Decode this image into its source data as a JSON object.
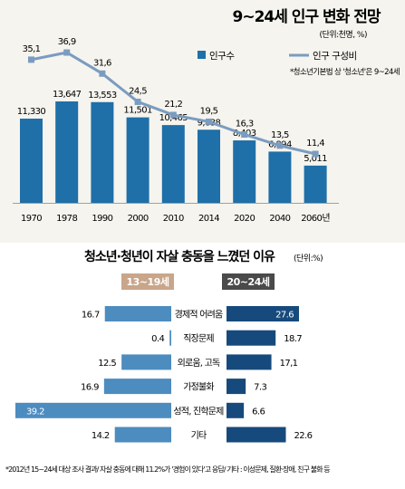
{
  "chart_data": [
    {
      "type": "bar",
      "title": "9~24세 인구 변화 전망",
      "unit": "(단위:천명, %)",
      "note": "*청소년기본법 상 '청소년'은 9~24세",
      "categories": [
        "1970",
        "1978",
        "1990",
        "2000",
        "2010",
        "2014",
        "2020",
        "2040",
        "2060년"
      ],
      "series": [
        {
          "name": "인구수",
          "type": "bar",
          "values": [
            11330,
            13647,
            13553,
            11501,
            10465,
            9838,
            8403,
            6894,
            5011
          ],
          "labels": [
            "11,330",
            "13,647",
            "13,553",
            "11,501",
            "10,465",
            "9,838",
            "8,403",
            "6,894",
            "5,011"
          ]
        },
        {
          "name": "인구 구성비",
          "type": "line",
          "values": [
            35.1,
            36.9,
            31.6,
            24.5,
            21.2,
            19.5,
            16.3,
            13.5,
            11.4
          ],
          "labels": [
            "35,1",
            "36,9",
            "31,6",
            "24,5",
            "21,2",
            "19,5",
            "16,3",
            "13,5",
            "11,4"
          ]
        }
      ],
      "colors": {
        "bar": "#1f6fa8",
        "line": "#7a9cc0",
        "background": "#f5f4ee"
      }
    },
    {
      "type": "bar",
      "title": "청소년·청년이 자살 충동을 느꼈던 이유",
      "unit": "(단위:%)",
      "categories": [
        "경제적 어려움",
        "직장문제",
        "외로움, 고독",
        "가정불화",
        "성적, 진학문제",
        "기타"
      ],
      "series": [
        {
          "name": "13~19세",
          "values": [
            16.7,
            0.4,
            12.5,
            16.9,
            39.2,
            14.2
          ],
          "labels": [
            "16.7",
            "0.4",
            "12.5",
            "16.9",
            "39.2",
            "14.2"
          ],
          "color": "#4d8cbf"
        },
        {
          "name": "20~24세",
          "values": [
            27.6,
            18.7,
            17.1,
            7.3,
            6.6,
            22.6
          ],
          "labels": [
            "27.6",
            "18.7",
            "17,1",
            "7.3",
            "6.6",
            "22.6"
          ],
          "color": "#174a7c"
        }
      ],
      "colors": {
        "header_left": "#c9a58a",
        "header_right": "#4a4a4a"
      }
    }
  ],
  "footnote": "*2012년 15~24세 대상 조사 결과/ 자살 충동에 대해 11.2%가 '경험이 있다'고 응답/ 기타 : 이성문제, 질환·장애, 친구 불화 등"
}
